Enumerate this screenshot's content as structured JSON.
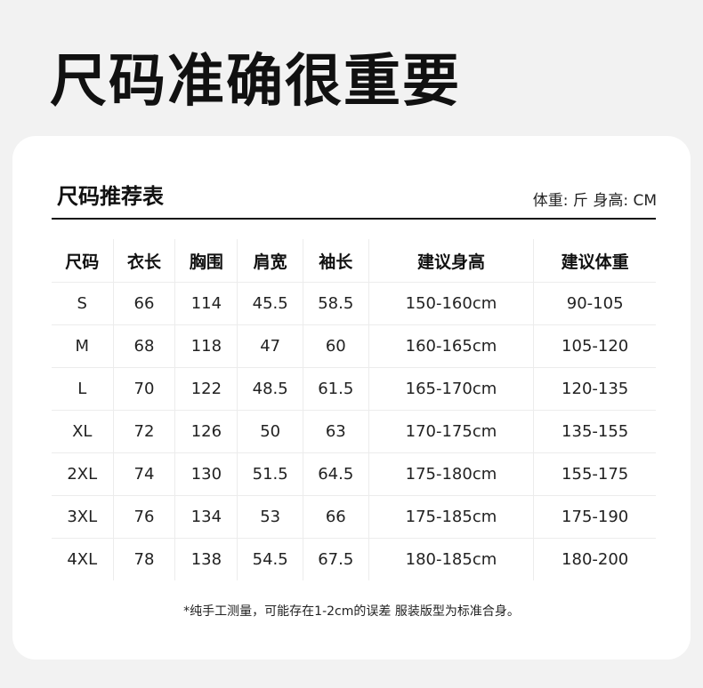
{
  "title": "尺码准确很重要",
  "card": {
    "subtitle": "尺码推荐表",
    "units": "体重: 斤 身高: CM",
    "columns": [
      "尺码",
      "衣长",
      "胸围",
      "肩宽",
      "袖长",
      "建议身高",
      "建议体重"
    ],
    "rows": [
      [
        "S",
        "66",
        "114",
        "45.5",
        "58.5",
        "150-160cm",
        "90-105"
      ],
      [
        "M",
        "68",
        "118",
        "47",
        "60",
        "160-165cm",
        "105-120"
      ],
      [
        "L",
        "70",
        "122",
        "48.5",
        "61.5",
        "165-170cm",
        "120-135"
      ],
      [
        "XL",
        "72",
        "126",
        "50",
        "63",
        "170-175cm",
        "135-155"
      ],
      [
        "2XL",
        "74",
        "130",
        "51.5",
        "64.5",
        "175-180cm",
        "155-175"
      ],
      [
        "3XL",
        "76",
        "134",
        "53",
        "66",
        "175-185cm",
        "175-190"
      ],
      [
        "4XL",
        "78",
        "138",
        "54.5",
        "67.5",
        "180-185cm",
        "180-200"
      ]
    ],
    "note": "*纯手工测量，可能存在1-2cm的误差 服装版型为标准合身。"
  }
}
